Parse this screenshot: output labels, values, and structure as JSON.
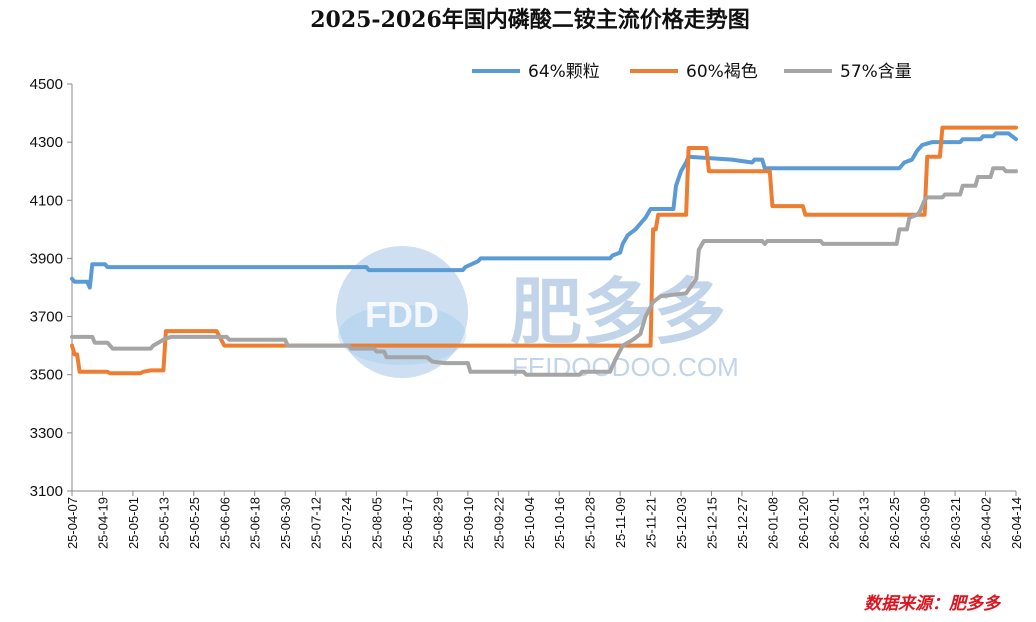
{
  "chart_data": {
    "type": "line",
    "title": "2025-2026年国内磷酸二铵主流价格走势图",
    "source": "数据来源：肥多多",
    "watermark": {
      "logo": "FDD",
      "name": "肥多多",
      "url": "FEIDOODOO.COM"
    },
    "ylim": [
      3100,
      4500
    ],
    "yticks": [
      3100,
      3300,
      3500,
      3700,
      3900,
      4100,
      4300,
      4500
    ],
    "xlim": [
      "2025-04-07",
      "2026-04-14"
    ],
    "xticks": [
      "25-04-07",
      "25-04-19",
      "25-05-01",
      "25-05-13",
      "25-05-25",
      "25-06-06",
      "25-06-18",
      "25-06-30",
      "25-07-12",
      "25-07-24",
      "25-08-05",
      "25-08-17",
      "25-08-29",
      "25-09-10",
      "25-09-22",
      "25-10-04",
      "25-10-16",
      "25-10-28",
      "25-11-09",
      "25-11-21",
      "25-12-03",
      "25-12-15",
      "25-12-27",
      "26-01-08",
      "26-01-20",
      "26-02-01",
      "26-02-13",
      "26-02-25",
      "26-03-09",
      "26-03-21",
      "26-04-02",
      "26-04-14"
    ],
    "grid": false,
    "legend_position": "top-right",
    "series": [
      {
        "name": "64%颗粒",
        "color": "#5b9bd5",
        "points": [
          [
            "2025-04-07",
            3830
          ],
          [
            "2025-04-08",
            3820
          ],
          [
            "2025-04-13",
            3820
          ],
          [
            "2025-04-14",
            3800
          ],
          [
            "2025-04-15",
            3880
          ],
          [
            "2025-04-20",
            3880
          ],
          [
            "2025-04-21",
            3870
          ],
          [
            "2025-08-01",
            3870
          ],
          [
            "2025-08-02",
            3860
          ],
          [
            "2025-09-08",
            3860
          ],
          [
            "2025-09-09",
            3870
          ],
          [
            "2025-09-14",
            3890
          ],
          [
            "2025-09-15",
            3900
          ],
          [
            "2025-11-05",
            3900
          ],
          [
            "2025-11-06",
            3910
          ],
          [
            "2025-11-09",
            3920
          ],
          [
            "2025-11-10",
            3950
          ],
          [
            "2025-11-12",
            3980
          ],
          [
            "2025-11-15",
            4000
          ],
          [
            "2025-11-19",
            4040
          ],
          [
            "2025-11-21",
            4070
          ],
          [
            "2025-11-30",
            4070
          ],
          [
            "2025-12-01",
            4150
          ],
          [
            "2025-12-03",
            4200
          ],
          [
            "2025-12-05",
            4230
          ],
          [
            "2025-12-06",
            4250
          ],
          [
            "2025-12-23",
            4240
          ],
          [
            "2025-12-31",
            4230
          ],
          [
            "2026-01-01",
            4240
          ],
          [
            "2026-01-04",
            4240
          ],
          [
            "2026-01-05",
            4210
          ],
          [
            "2026-02-27",
            4210
          ],
          [
            "2026-03-01",
            4230
          ],
          [
            "2026-03-04",
            4240
          ],
          [
            "2026-03-06",
            4270
          ],
          [
            "2026-03-08",
            4290
          ],
          [
            "2026-03-12",
            4300
          ],
          [
            "2026-03-23",
            4300
          ],
          [
            "2026-03-24",
            4310
          ],
          [
            "2026-03-31",
            4310
          ],
          [
            "2026-04-01",
            4320
          ],
          [
            "2026-04-05",
            4320
          ],
          [
            "2026-04-06",
            4330
          ],
          [
            "2026-04-11",
            4330
          ],
          [
            "2026-04-14",
            4310
          ]
        ]
      },
      {
        "name": "60%褐色",
        "color": "#ed7d31",
        "points": [
          [
            "2025-04-07",
            3600
          ],
          [
            "2025-04-08",
            3570
          ],
          [
            "2025-04-09",
            3570
          ],
          [
            "2025-04-10",
            3510
          ],
          [
            "2025-04-21",
            3510
          ],
          [
            "2025-04-22",
            3505
          ],
          [
            "2025-05-04",
            3505
          ],
          [
            "2025-05-05",
            3510
          ],
          [
            "2025-05-08",
            3515
          ],
          [
            "2025-05-13",
            3515
          ],
          [
            "2025-05-14",
            3650
          ],
          [
            "2025-06-03",
            3650
          ],
          [
            "2025-06-06",
            3600
          ],
          [
            "2025-11-21",
            3600
          ],
          [
            "2025-11-22",
            4000
          ],
          [
            "2025-11-23",
            4000
          ],
          [
            "2025-11-24",
            4050
          ],
          [
            "2025-12-05",
            4050
          ],
          [
            "2025-12-06",
            4280
          ],
          [
            "2025-12-13",
            4280
          ],
          [
            "2025-12-14",
            4200
          ],
          [
            "2026-01-07",
            4200
          ],
          [
            "2026-01-08",
            4080
          ],
          [
            "2026-01-20",
            4080
          ],
          [
            "2026-01-21",
            4050
          ],
          [
            "2026-03-09",
            4050
          ],
          [
            "2026-03-10",
            4250
          ],
          [
            "2026-03-15",
            4250
          ],
          [
            "2026-03-16",
            4350
          ],
          [
            "2026-04-14",
            4350
          ]
        ]
      },
      {
        "name": "57%含量",
        "color": "#a5a5a5",
        "points": [
          [
            "2025-04-07",
            3630
          ],
          [
            "2025-04-15",
            3630
          ],
          [
            "2025-04-16",
            3610
          ],
          [
            "2025-04-21",
            3610
          ],
          [
            "2025-04-23",
            3590
          ],
          [
            "2025-05-08",
            3590
          ],
          [
            "2025-05-09",
            3600
          ],
          [
            "2025-05-11",
            3610
          ],
          [
            "2025-05-13",
            3620
          ],
          [
            "2025-05-16",
            3630
          ],
          [
            "2025-06-07",
            3630
          ],
          [
            "2025-06-08",
            3620
          ],
          [
            "2025-06-30",
            3620
          ],
          [
            "2025-07-01",
            3600
          ],
          [
            "2025-07-25",
            3600
          ],
          [
            "2025-07-26",
            3590
          ],
          [
            "2025-08-04",
            3590
          ],
          [
            "2025-08-05",
            3580
          ],
          [
            "2025-08-08",
            3580
          ],
          [
            "2025-08-09",
            3560
          ],
          [
            "2025-08-25",
            3560
          ],
          [
            "2025-08-27",
            3545
          ],
          [
            "2025-09-01",
            3540
          ],
          [
            "2025-09-10",
            3540
          ],
          [
            "2025-09-11",
            3510
          ],
          [
            "2025-10-02",
            3510
          ],
          [
            "2025-10-03",
            3500
          ],
          [
            "2025-10-24",
            3500
          ],
          [
            "2025-10-25",
            3510
          ],
          [
            "2025-11-05",
            3510
          ],
          [
            "2025-11-06",
            3530
          ],
          [
            "2025-11-07",
            3550
          ],
          [
            "2025-11-10",
            3600
          ],
          [
            "2025-11-14",
            3620
          ],
          [
            "2025-11-17",
            3640
          ],
          [
            "2025-11-19",
            3700
          ],
          [
            "2025-11-22",
            3750
          ],
          [
            "2025-11-25",
            3770
          ],
          [
            "2025-12-05",
            3780
          ],
          [
            "2025-12-09",
            3830
          ],
          [
            "2025-12-10",
            3930
          ],
          [
            "2025-12-12",
            3960
          ],
          [
            "2026-01-04",
            3960
          ],
          [
            "2026-01-05",
            3950
          ],
          [
            "2026-01-06",
            3960
          ],
          [
            "2026-01-27",
            3960
          ],
          [
            "2026-01-28",
            3950
          ],
          [
            "2026-02-26",
            3950
          ],
          [
            "2026-02-27",
            4000
          ],
          [
            "2026-03-02",
            4000
          ],
          [
            "2026-03-03",
            4040
          ],
          [
            "2026-03-06",
            4050
          ],
          [
            "2026-03-07",
            4060
          ],
          [
            "2026-03-09",
            4100
          ],
          [
            "2026-03-10",
            4110
          ],
          [
            "2026-03-16",
            4110
          ],
          [
            "2026-03-17",
            4120
          ],
          [
            "2026-03-23",
            4120
          ],
          [
            "2026-03-24",
            4150
          ],
          [
            "2026-03-29",
            4150
          ],
          [
            "2026-03-30",
            4180
          ],
          [
            "2026-04-04",
            4180
          ],
          [
            "2026-04-05",
            4210
          ],
          [
            "2026-04-09",
            4210
          ],
          [
            "2026-04-10",
            4200
          ],
          [
            "2026-04-14",
            4200
          ]
        ]
      }
    ]
  }
}
